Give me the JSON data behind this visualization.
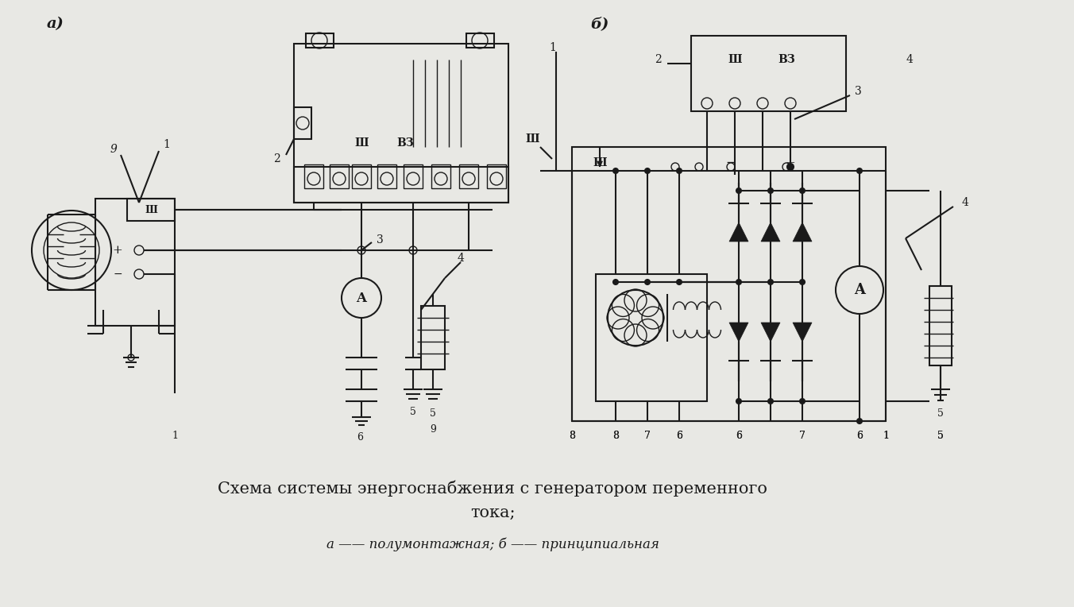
{
  "background_color": "#e8e8e4",
  "title_line1": "Схема системы энергоснабжения с генератором переменного",
  "title_line2": "тока;",
  "subtitle": "а —— полумонтажная; б —— принципиальная",
  "label_a": "а)",
  "label_b": "б)",
  "line_color": "#1a1a1a",
  "title_fontsize": 15,
  "subtitle_fontsize": 12
}
